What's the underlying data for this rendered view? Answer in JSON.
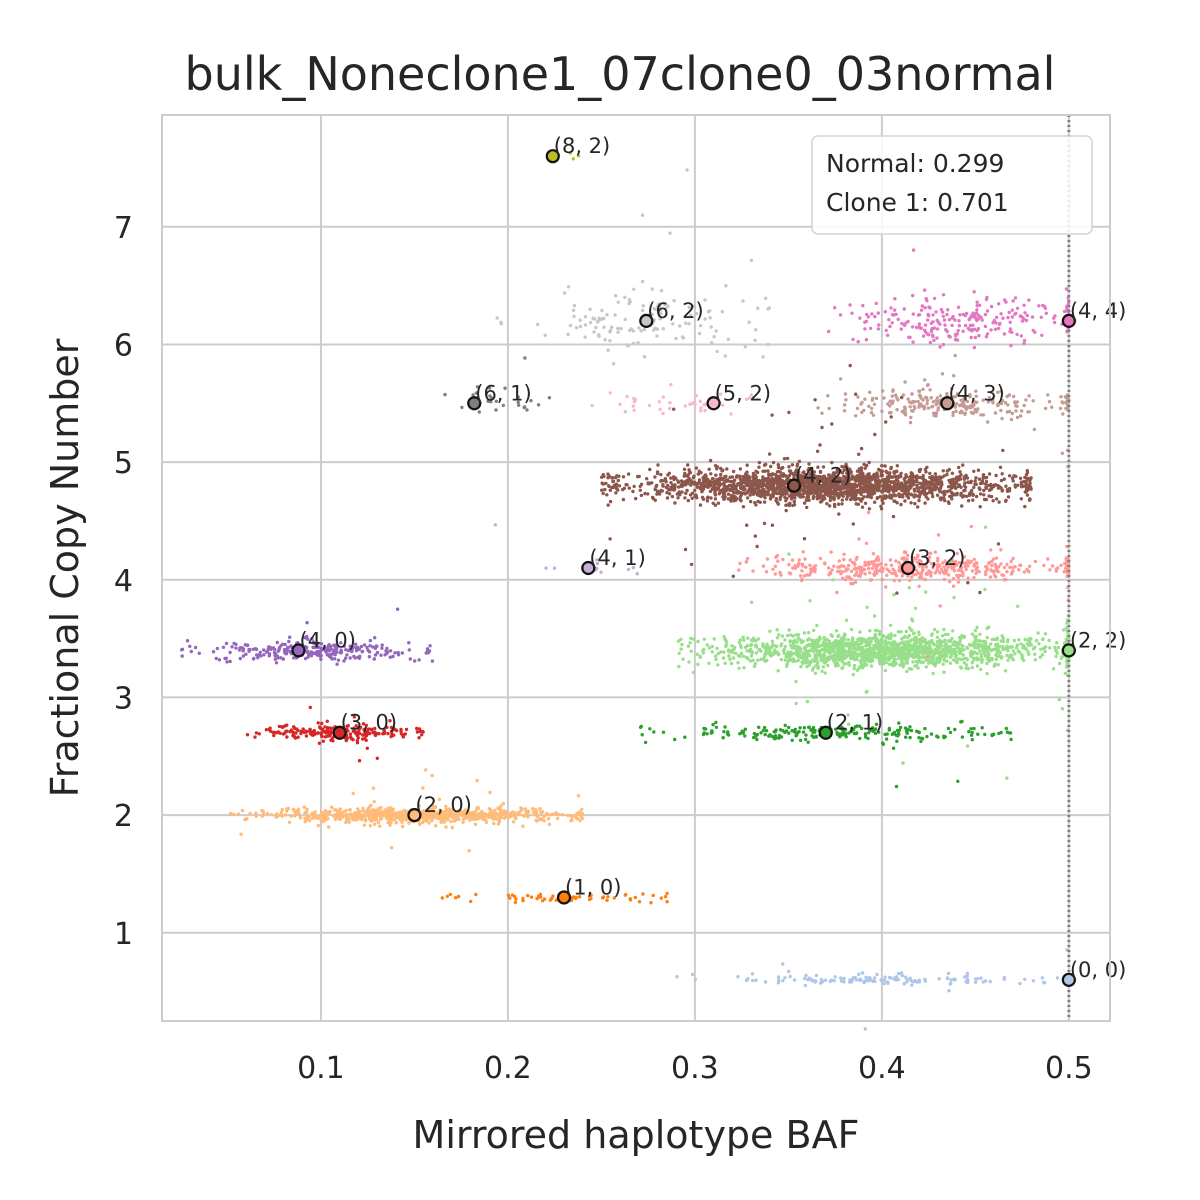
{
  "chart_data": {
    "type": "scatter",
    "title": "bulk_Noneclone1_07clone0_03normal",
    "xlabel": "Mirrored haplotype BAF",
    "ylabel": "Fractional Copy Number",
    "xlim": [
      0.015,
      0.522
    ],
    "ylim": [
      0.25,
      7.95
    ],
    "xticks": [
      0.1,
      0.2,
      0.3,
      0.4,
      0.5
    ],
    "xtick_labels": [
      "0.1",
      "0.2",
      "0.3",
      "0.4",
      "0.5"
    ],
    "yticks": [
      1,
      2,
      3,
      4,
      5,
      6,
      7
    ],
    "ytick_labels": [
      "1",
      "2",
      "3",
      "4",
      "5",
      "6",
      "7"
    ],
    "grid": true,
    "reference_line": {
      "x": 0.5,
      "style": "dotted",
      "color": "#808080"
    },
    "legend_box": {
      "placement": "top-right",
      "lines": [
        "Normal: 0.299",
        "Clone 1: 0.701"
      ]
    },
    "clusters": [
      {
        "label": "(0, 0)",
        "center": [
          0.5,
          0.6
        ],
        "color": "#aec7e8",
        "baf_range": [
          0.3,
          0.5
        ],
        "cn_spread": 0.02,
        "n": 150
      },
      {
        "label": "(1, 0)",
        "center": [
          0.23,
          1.3
        ],
        "color": "#ff7f0e",
        "baf_range": [
          0.17,
          0.29
        ],
        "cn_spread": 0.02,
        "n": 60
      },
      {
        "label": "(2, 0)",
        "center": [
          0.15,
          2.0
        ],
        "color": "#ffbb78",
        "baf_range": [
          0.06,
          0.24
        ],
        "cn_spread": 0.03,
        "n": 800
      },
      {
        "label": "(3, 0)",
        "center": [
          0.11,
          2.7
        ],
        "color": "#d62728",
        "baf_range": [
          0.065,
          0.155
        ],
        "cn_spread": 0.03,
        "n": 220
      },
      {
        "label": "(4, 0)",
        "center": [
          0.088,
          3.4
        ],
        "color": "#9467bd",
        "baf_range": [
          0.035,
          0.16
        ],
        "cn_spread": 0.045,
        "n": 280
      },
      {
        "label": "(2, 1)",
        "center": [
          0.37,
          2.7
        ],
        "color": "#2ca02c",
        "baf_range": [
          0.28,
          0.47
        ],
        "cn_spread": 0.035,
        "n": 220
      },
      {
        "label": "(2, 2)",
        "center": [
          0.5,
          3.4
        ],
        "color": "#98df8a",
        "baf_range": [
          0.3,
          0.5
        ],
        "cn_spread": 0.07,
        "n": 1600
      },
      {
        "label": "(4, 1)",
        "center": [
          0.243,
          4.1
        ],
        "color": "#c5b0d5",
        "baf_range": [
          0.2,
          0.27
        ],
        "cn_spread": 0.03,
        "n": 12
      },
      {
        "label": "(3, 2)",
        "center": [
          0.414,
          4.1
        ],
        "color": "#ff9896",
        "baf_range": [
          0.33,
          0.5
        ],
        "cn_spread": 0.055,
        "n": 450
      },
      {
        "label": "(4, 2)",
        "center": [
          0.353,
          4.8
        ],
        "color": "#8c564b",
        "baf_range": [
          0.26,
          0.48
        ],
        "cn_spread": 0.07,
        "n": 2000
      },
      {
        "label": "(5, 2)",
        "center": [
          0.31,
          5.5
        ],
        "color": "#f7b6d2",
        "baf_range": [
          0.25,
          0.35
        ],
        "cn_spread": 0.04,
        "n": 40
      },
      {
        "label": "(4, 3)",
        "center": [
          0.435,
          5.5
        ],
        "color": "#c49c94",
        "baf_range": [
          0.37,
          0.5
        ],
        "cn_spread": 0.06,
        "n": 260
      },
      {
        "label": "(6, 1)",
        "center": [
          0.182,
          5.5
        ],
        "color": "#7f7f7f",
        "baf_range": [
          0.16,
          0.23
        ],
        "cn_spread": 0.05,
        "n": 25
      },
      {
        "label": "(6, 2)",
        "center": [
          0.274,
          6.2
        ],
        "color": "#c7c7c7",
        "baf_range": [
          0.2,
          0.34
        ],
        "cn_spread": 0.12,
        "n": 140
      },
      {
        "label": "(4, 4)",
        "center": [
          0.5,
          6.2
        ],
        "color": "#e377c2",
        "baf_range": [
          0.38,
          0.5
        ],
        "cn_spread": 0.1,
        "n": 250
      },
      {
        "label": "(8, 2)",
        "center": [
          0.224,
          7.6
        ],
        "color": "#bcbd22",
        "baf_range": [
          0.22,
          0.245
        ],
        "cn_spread": 0.02,
        "n": 3
      }
    ]
  }
}
